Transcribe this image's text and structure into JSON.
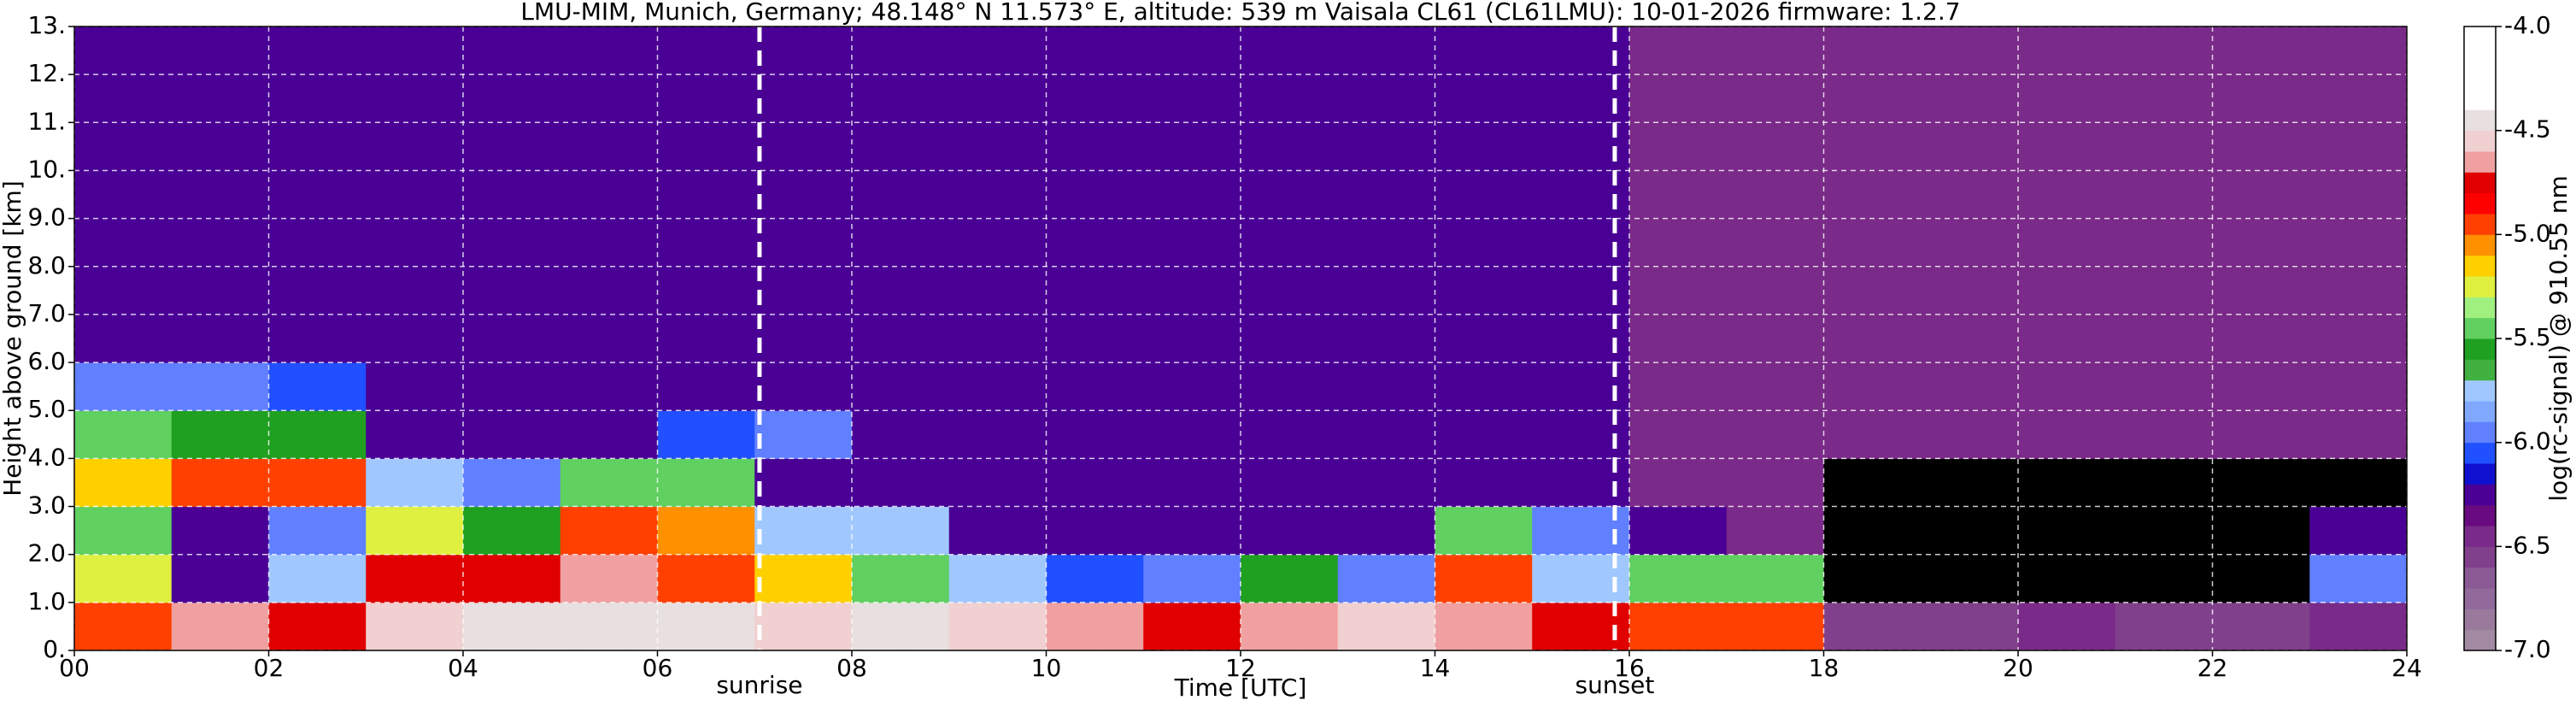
{
  "chart_data": {
    "type": "heatmap",
    "title": "LMU-MIM, Munich, Germany; 48.148° N 11.573° E, altitude: 539 m    Vaisala CL61 (CL61LMU): 10-01-2026    firmware: 1.2.7",
    "x_label": "Time [UTC]",
    "y_label": "Height above ground [km]",
    "colorbar_label": "log(rc-signal) @ 910.55 nm",
    "x": [
      0,
      1,
      2,
      3,
      4,
      5,
      6,
      7,
      8,
      9,
      10,
      11,
      12,
      13,
      14,
      15,
      16,
      17,
      18,
      19,
      20,
      21,
      22,
      23,
      24
    ],
    "y": [
      0,
      1,
      2,
      3,
      4,
      5,
      6,
      7,
      8,
      9,
      10,
      11,
      12,
      13
    ],
    "z": [
      [
        -5.0,
        -4.7,
        -4.8,
        -4.6,
        -4.5,
        -4.5,
        -4.5,
        -4.6,
        -4.5,
        -4.6,
        -4.7,
        -4.8,
        -4.7,
        -4.6,
        -4.7,
        -4.8,
        -4.9,
        -5.0,
        -6.6,
        -6.6,
        -6.5,
        -6.6,
        -6.6,
        -6.4
      ],
      [
        -5.3,
        -6.2,
        -5.8,
        -4.8,
        -4.8,
        -4.7,
        -4.9,
        -5.2,
        -5.4,
        -5.8,
        -6.1,
        -5.9,
        -5.6,
        -6.0,
        -5.0,
        -5.8,
        -5.5,
        -5.4,
        null,
        null,
        null,
        null,
        null,
        -5.9
      ],
      [
        -5.5,
        -6.2,
        -6.0,
        -5.3,
        -5.6,
        -5.0,
        -5.1,
        -5.8,
        -5.8,
        -6.2,
        -6.3,
        -6.2,
        -6.2,
        -6.2,
        -5.4,
        -5.9,
        -6.3,
        -6.4,
        null,
        null,
        null,
        null,
        null,
        -6.3
      ],
      [
        -5.2,
        -5.0,
        -5.0,
        -5.8,
        -6.0,
        -5.5,
        -5.5,
        -6.2,
        -6.3,
        -6.3,
        -6.3,
        -6.3,
        -6.3,
        -6.3,
        -6.3,
        -6.3,
        -6.4,
        -6.5,
        null,
        null,
        null,
        null,
        null,
        null
      ],
      [
        -5.5,
        -5.6,
        -5.6,
        -6.2,
        -6.3,
        -6.2,
        -6.1,
        -6.0,
        -6.3,
        -6.3,
        -6.3,
        -6.3,
        -6.3,
        -6.3,
        -6.3,
        -6.3,
        -6.4,
        -6.4,
        -6.5,
        -6.5,
        -6.5,
        -6.5,
        -6.5,
        -6.5
      ],
      [
        -6.0,
        -6.0,
        -6.1,
        -6.3,
        -6.3,
        -6.3,
        -6.2,
        -6.3,
        -6.3,
        -6.3,
        -6.3,
        -6.3,
        -6.3,
        -6.3,
        -6.3,
        -6.3,
        -6.4,
        -6.4,
        -6.4,
        -6.4,
        -6.4,
        -6.4,
        -6.4,
        -6.4
      ],
      [
        -6.3,
        -6.3,
        -6.2,
        -6.3,
        -6.3,
        -6.3,
        -6.3,
        -6.3,
        -6.3,
        -6.3,
        -6.3,
        -6.3,
        -6.3,
        -6.3,
        -6.3,
        -6.3,
        -6.4,
        -6.4,
        -6.4,
        -6.4,
        -6.4,
        -6.4,
        -6.4,
        -6.4
      ],
      [
        -6.3,
        -6.3,
        -6.3,
        -6.3,
        -6.3,
        -6.3,
        -6.3,
        -6.3,
        -6.3,
        -6.3,
        -6.3,
        -6.3,
        -6.3,
        -6.3,
        -6.3,
        -6.3,
        -6.4,
        -6.4,
        -6.4,
        -6.4,
        -6.4,
        -6.4,
        -6.4,
        -6.4
      ],
      [
        -6.3,
        -6.3,
        -6.3,
        -6.3,
        -6.3,
        -6.3,
        -6.3,
        -6.3,
        -6.3,
        -6.3,
        -6.3,
        -6.3,
        -6.3,
        -6.3,
        -6.3,
        -6.3,
        -6.4,
        -6.4,
        -6.4,
        -6.4,
        -6.4,
        -6.4,
        -6.4,
        -6.4
      ],
      [
        -6.3,
        -6.3,
        -6.3,
        -6.3,
        -6.3,
        -6.3,
        -6.3,
        -6.3,
        -6.3,
        -6.3,
        -6.3,
        -6.3,
        -6.3,
        -6.3,
        -6.3,
        -6.3,
        -6.4,
        -6.4,
        -6.4,
        -6.4,
        -6.4,
        -6.4,
        -6.4,
        -6.4
      ],
      [
        -6.3,
        -6.3,
        -6.3,
        -6.3,
        -6.3,
        -6.3,
        -6.3,
        -6.3,
        -6.3,
        -6.3,
        -6.3,
        -6.3,
        -6.3,
        -6.3,
        -6.3,
        -6.3,
        -6.4,
        -6.4,
        -6.4,
        -6.4,
        -6.4,
        -6.4,
        -6.4,
        -6.4
      ],
      [
        -6.3,
        -6.3,
        -6.3,
        -6.3,
        -6.3,
        -6.3,
        -6.3,
        -6.3,
        -6.3,
        -6.3,
        -6.3,
        -6.3,
        -6.3,
        -6.3,
        -6.3,
        -6.3,
        -6.4,
        -6.4,
        -6.4,
        -6.4,
        -6.4,
        -6.4,
        -6.4,
        -6.4
      ],
      [
        -6.3,
        -6.3,
        -6.3,
        -6.3,
        -6.3,
        -6.3,
        -6.3,
        -6.3,
        -6.3,
        -6.3,
        -6.3,
        -6.3,
        -6.3,
        -6.3,
        -6.3,
        -6.3,
        -6.4,
        -6.4,
        -6.4,
        -6.4,
        -6.4,
        -6.4,
        -6.4,
        -6.4
      ]
    ],
    "missing_color": "#000000",
    "colorscale": [
      "#a38aa3",
      "#9a7a9c",
      "#91699a",
      "#8a5a95",
      "#80408c",
      "#7a2a88",
      "#6a0a80",
      "#4a0095",
      "#1010d0",
      "#2050ff",
      "#6080ff",
      "#80a8ff",
      "#a0c8ff",
      "#40b040",
      "#20a020",
      "#60d060",
      "#a0f080",
      "#e0f040",
      "#ffd000",
      "#ff9000",
      "#ff4000",
      "#ff0000",
      "#e00000",
      "#f0a0a0",
      "#f0d0d0",
      "#e8e0e0",
      "#ffffff",
      "#ffffff",
      "#ffffff",
      "#ffffff"
    ],
    "clim": [
      -7,
      -4
    ],
    "cticks": [
      {
        "value": -7,
        "label": "-7.0"
      },
      -6.5,
      {
        "value": -6,
        "label": "-6.0"
      },
      -5.5,
      {
        "value": -5,
        "label": "-5.0"
      },
      -4.5,
      {
        "value": -4,
        "label": "-4.0"
      }
    ],
    "xlim": [
      0,
      24
    ],
    "xticks": [
      {
        "value": 0,
        "label": "00"
      },
      {
        "value": 2,
        "label": "02"
      },
      {
        "value": 4,
        "label": "04"
      },
      {
        "value": 6,
        "label": "06"
      },
      {
        "value": 8,
        "label": "08"
      },
      10,
      12,
      14,
      16,
      18,
      20,
      22,
      24
    ],
    "ylim": [
      0,
      13
    ],
    "yticks": [
      {
        "value": 0,
        "label": "0."
      },
      {
        "value": 1,
        "label": "1.0"
      },
      {
        "value": 2,
        "label": "2.0"
      },
      {
        "value": 3,
        "label": "3.0"
      },
      {
        "value": 4,
        "label": "4.0"
      },
      {
        "value": 5,
        "label": "5.0"
      },
      {
        "value": 6,
        "label": "6.0"
      },
      {
        "value": 7,
        "label": "7.0"
      },
      {
        "value": 8,
        "label": "8.0"
      },
      {
        "value": 9,
        "label": "9.0"
      },
      {
        "value": 10,
        "label": "10."
      },
      {
        "value": 11,
        "label": "11."
      },
      {
        "value": 12,
        "label": "12."
      },
      {
        "value": 13,
        "label": "13."
      }
    ],
    "grid": true,
    "annotations": [
      {
        "text": "sunrise",
        "x": 7.05
      },
      {
        "text": "sunset",
        "x": 15.85
      }
    ]
  }
}
